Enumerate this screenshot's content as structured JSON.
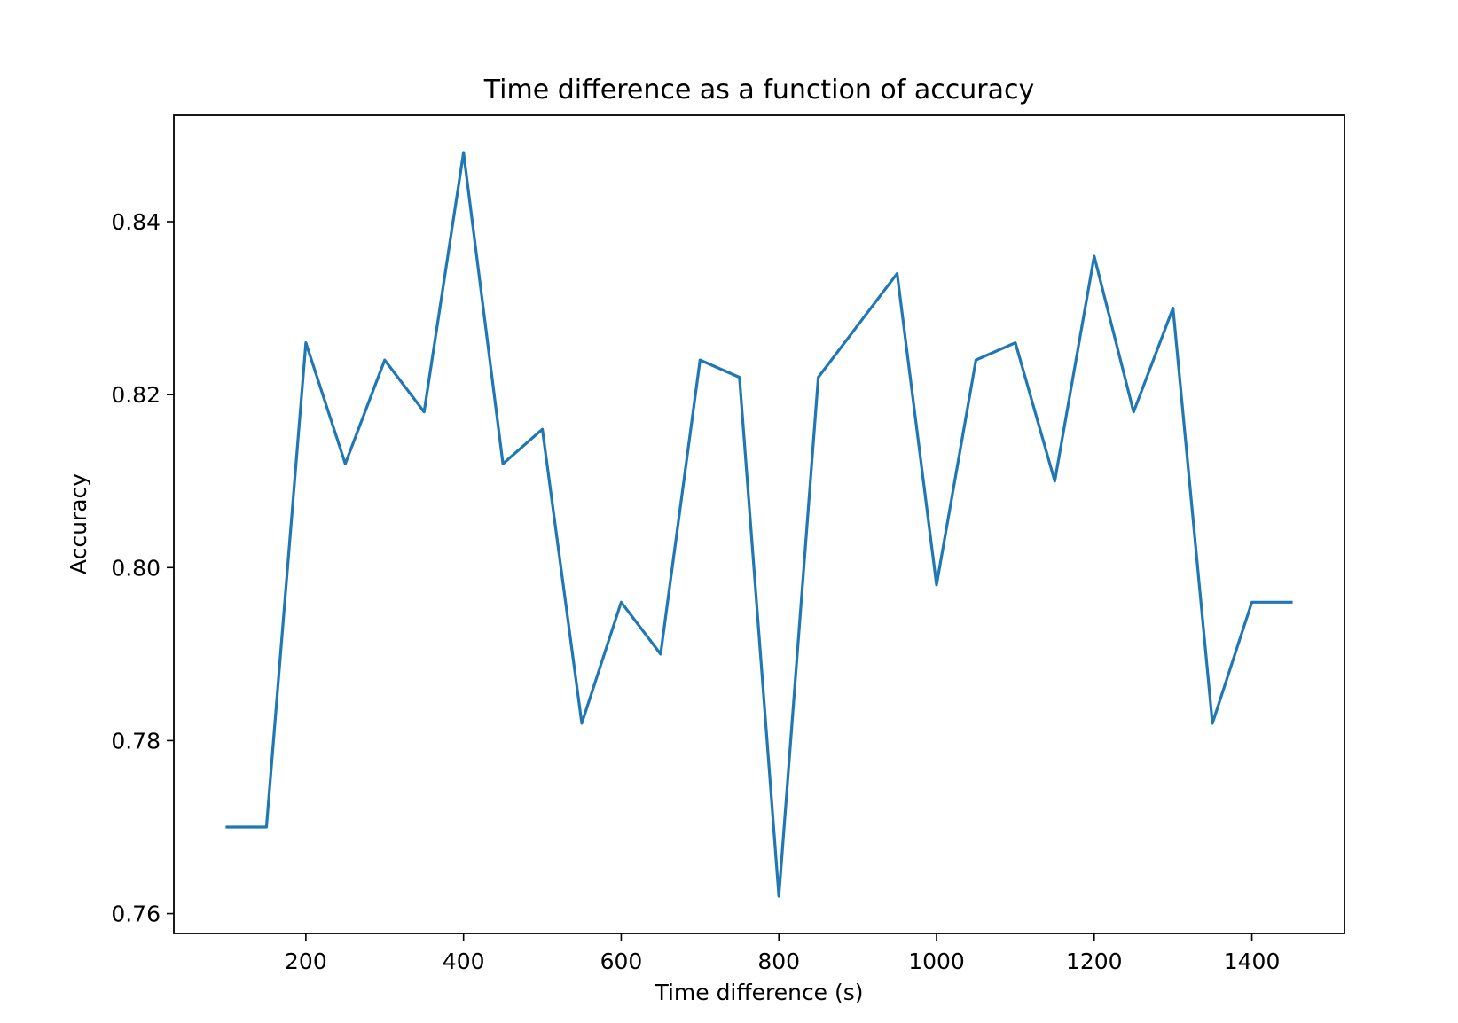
{
  "chart_data": {
    "type": "line",
    "title": "Time difference as a function of accuracy",
    "xlabel": "Time difference (s)",
    "ylabel": "Accuracy",
    "xlim": [
      32.5,
      1517.5
    ],
    "ylim": [
      0.7577,
      0.8523
    ],
    "xticks": [
      200,
      400,
      600,
      800,
      1000,
      1200,
      1400
    ],
    "yticks": [
      0.76,
      0.78,
      0.8,
      0.82,
      0.84
    ],
    "xtick_labels": [
      "200",
      "400",
      "600",
      "800",
      "1000",
      "1200",
      "1400"
    ],
    "ytick_labels": [
      "0.76",
      "0.78",
      "0.80",
      "0.82",
      "0.84"
    ],
    "grid": false,
    "series": [
      {
        "color": "#1f77b4",
        "x": [
          100,
          150,
          200,
          250,
          300,
          350,
          400,
          450,
          500,
          550,
          600,
          650,
          700,
          750,
          800,
          850,
          900,
          950,
          1000,
          1050,
          1100,
          1150,
          1200,
          1250,
          1300,
          1350,
          1400,
          1450
        ],
        "y": [
          0.77,
          0.77,
          0.826,
          0.812,
          0.824,
          0.818,
          0.848,
          0.812,
          0.816,
          0.782,
          0.796,
          0.79,
          0.824,
          0.822,
          0.762,
          0.822,
          0.828,
          0.834,
          0.798,
          0.824,
          0.826,
          0.81,
          0.836,
          0.818,
          0.83,
          0.782,
          0.796,
          0.796
        ]
      }
    ]
  }
}
